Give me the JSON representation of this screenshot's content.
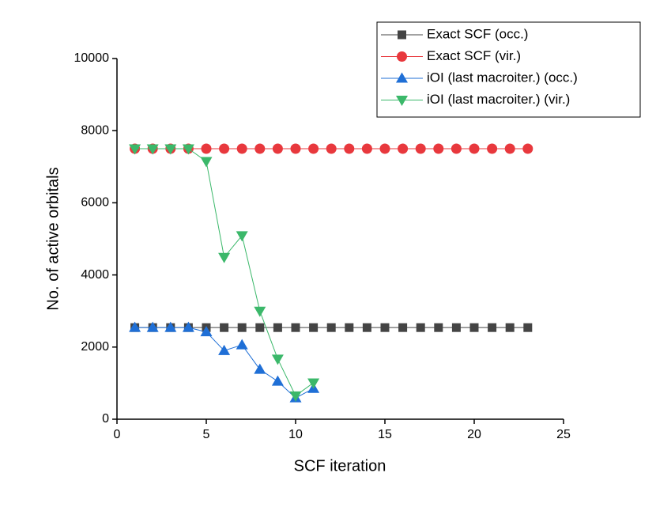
{
  "chart_data": {
    "type": "line",
    "x_label": "SCF iteration",
    "y_label": "No. of active orbitals",
    "xlim": [
      0,
      25
    ],
    "xticks": [
      0,
      5,
      10,
      15,
      20,
      25
    ],
    "ylim": [
      0,
      10000
    ],
    "yticks": [
      0,
      2000,
      4000,
      6000,
      8000,
      10000
    ],
    "legend": "upper right",
    "series": [
      {
        "name": "Exact SCF (occ.)",
        "color": "#444444",
        "marker": "square",
        "x": [
          1,
          2,
          3,
          4,
          5,
          6,
          7,
          8,
          9,
          10,
          11,
          12,
          13,
          14,
          15,
          16,
          17,
          18,
          19,
          20,
          21,
          22,
          23
        ],
        "values": [
          2540,
          2540,
          2540,
          2540,
          2540,
          2540,
          2540,
          2540,
          2540,
          2540,
          2540,
          2540,
          2540,
          2540,
          2540,
          2540,
          2540,
          2540,
          2540,
          2540,
          2540,
          2540,
          2540
        ]
      },
      {
        "name": "Exact SCF (vir.)",
        "color": "#e8383d",
        "marker": "circle",
        "x": [
          1,
          2,
          3,
          4,
          5,
          6,
          7,
          8,
          9,
          10,
          11,
          12,
          13,
          14,
          15,
          16,
          17,
          18,
          19,
          20,
          21,
          22,
          23
        ],
        "values": [
          7500,
          7500,
          7500,
          7500,
          7500,
          7500,
          7500,
          7500,
          7500,
          7500,
          7500,
          7500,
          7500,
          7500,
          7500,
          7500,
          7500,
          7500,
          7500,
          7500,
          7500,
          7500,
          7500
        ]
      },
      {
        "name": "iOI (last macroiter.) (occ.)",
        "color": "#1f6fd6",
        "marker": "triangle-up",
        "x": [
          1,
          2,
          3,
          4,
          5,
          6,
          7,
          8,
          9,
          10,
          11
        ],
        "values": [
          2540,
          2540,
          2540,
          2540,
          2420,
          1900,
          2060,
          1380,
          1050,
          590,
          850
        ]
      },
      {
        "name": "iOI (last macroiter.) (vir.)",
        "color": "#3bb86a",
        "marker": "triangle-down",
        "x": [
          1,
          2,
          3,
          4,
          5,
          6,
          7,
          8,
          9,
          10,
          11
        ],
        "values": [
          7500,
          7500,
          7500,
          7500,
          7150,
          4490,
          5090,
          3000,
          1670,
          650,
          1010
        ]
      }
    ]
  }
}
